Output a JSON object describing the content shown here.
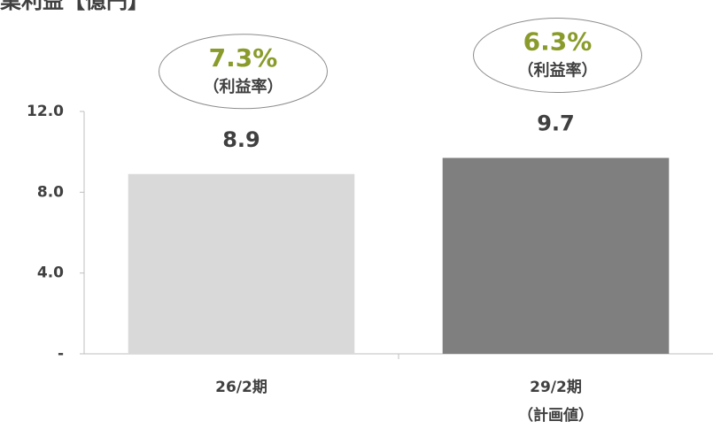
{
  "chart_data": {
    "type": "bar",
    "title": "業利益【億円】",
    "categories": [
      [
        "26/2期"
      ],
      [
        "29/2期",
        "（計画値）"
      ]
    ],
    "values": [
      8.9,
      9.7
    ],
    "colors": [
      "#d9d9d9",
      "#7f7f7f"
    ],
    "annotations": [
      {
        "text": "7.3%",
        "sub": "（利益率）"
      },
      {
        "text": "6.3%",
        "sub": "（利益率）"
      }
    ],
    "annotation_color": "#8a9b2b",
    "ylim": [
      0,
      12
    ],
    "yticks": [
      {
        "value": 0,
        "label": "-"
      },
      {
        "value": 4,
        "label": "4.0"
      },
      {
        "value": 8,
        "label": "8.0"
      },
      {
        "value": 12,
        "label": "12.0"
      }
    ],
    "grid": false
  }
}
